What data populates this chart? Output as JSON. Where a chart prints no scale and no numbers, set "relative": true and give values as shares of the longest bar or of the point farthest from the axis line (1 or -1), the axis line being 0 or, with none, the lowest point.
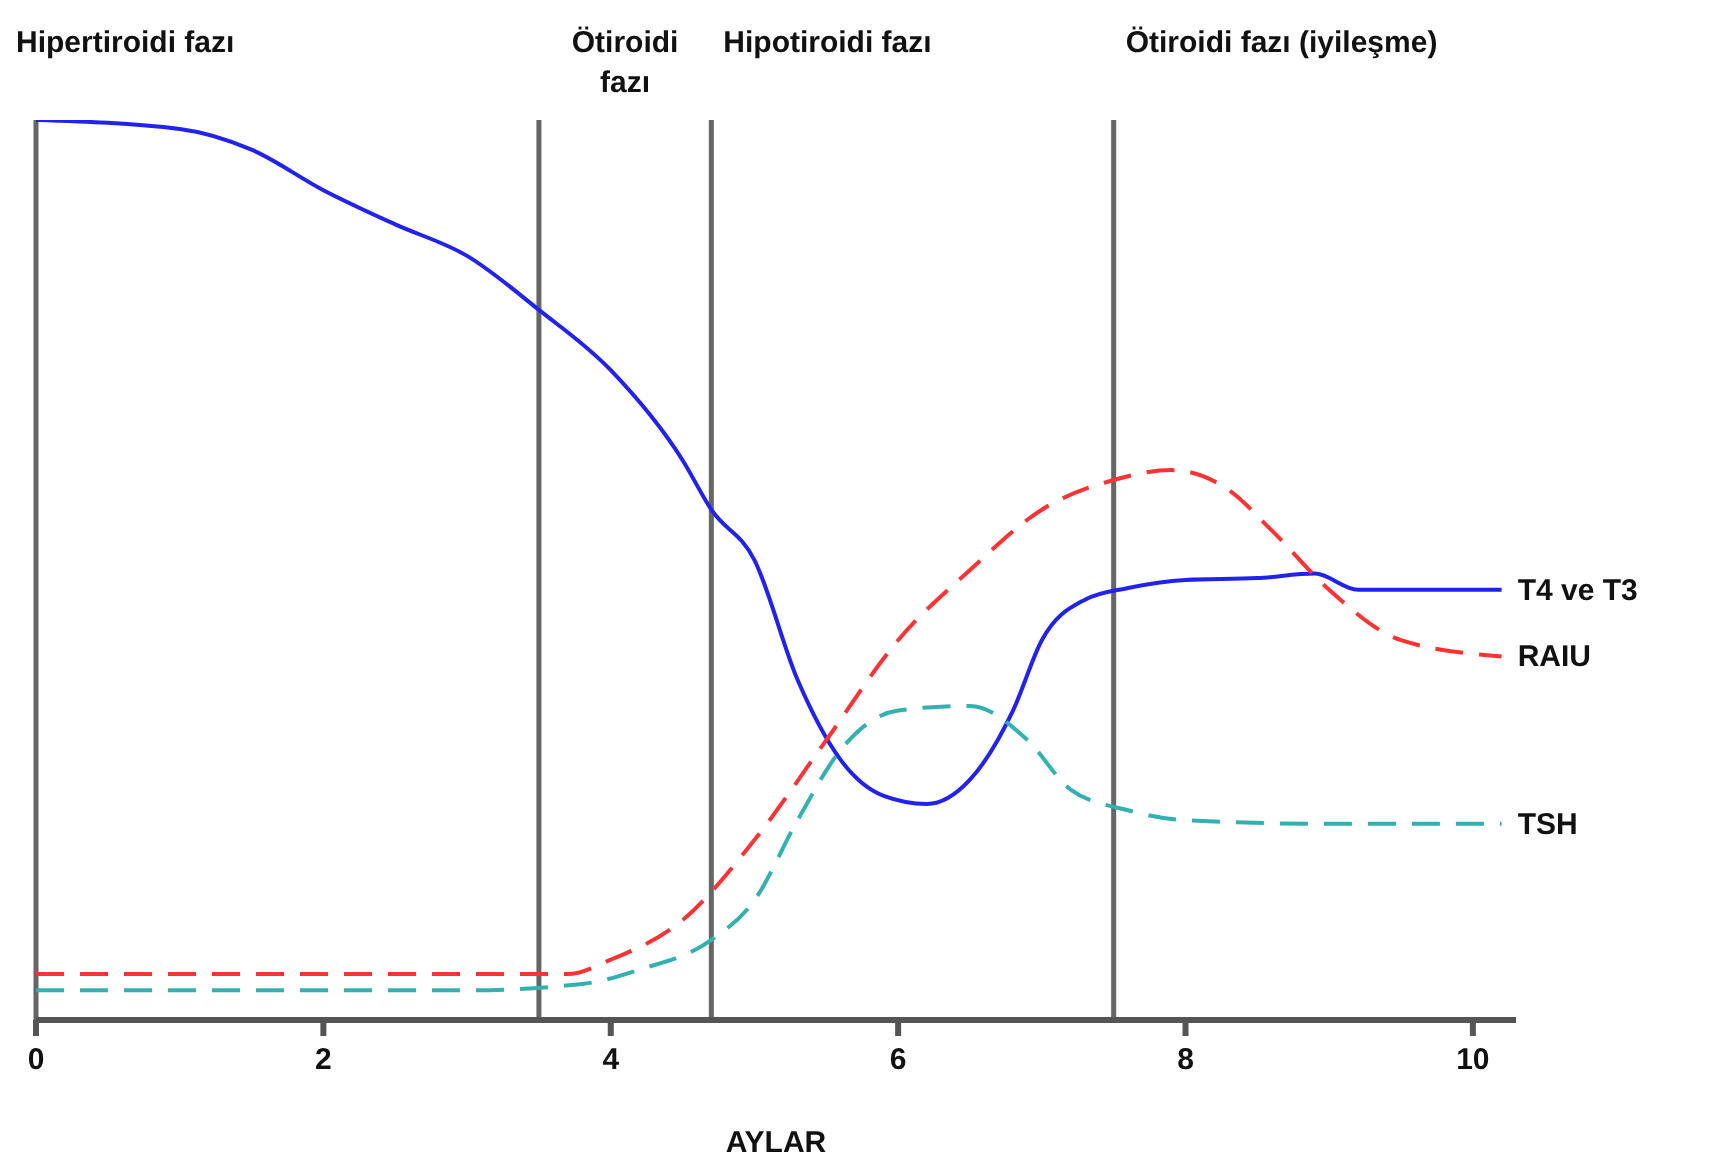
{
  "chart_data": {
    "type": "line",
    "relative": true,
    "xlabel": "AYLAR",
    "xlim": [
      0,
      10.3
    ],
    "xticks": [
      0,
      2,
      4,
      6,
      8,
      10
    ],
    "legend": false,
    "marker": "none",
    "annotations": [
      "Hipertiroidi fazı",
      "Ötiroidi fazı",
      "Hipotiroidi fazı",
      "Ötiroidi fazı (iyileşme)"
    ],
    "ref_lines": [
      {
        "axis": "x",
        "value": 0,
        "color": "#666666"
      },
      {
        "axis": "x",
        "value": 3.5,
        "color": "#666666"
      },
      {
        "axis": "x",
        "value": 4.7,
        "color": "#666666"
      },
      {
        "axis": "x",
        "value": 7.5,
        "color": "#666666"
      }
    ],
    "series": [
      {
        "name": "T4 ve T3",
        "color": "#2222ee",
        "line_style": "solid",
        "x": [
          0,
          1,
          1.5,
          2,
          2.5,
          3,
          3.5,
          4,
          4.5,
          4.7,
          5,
          5.3,
          5.6,
          5.9,
          6.2,
          6.5,
          6.8,
          7,
          7.3,
          7.6,
          8,
          8.5,
          8.9,
          9.2,
          9.6,
          10.2
        ],
        "values": [
          1,
          0.99,
          0.967,
          0.922,
          0.884,
          0.849,
          0.789,
          0.722,
          0.622,
          0.567,
          0.511,
          0.378,
          0.289,
          0.249,
          0.24,
          0.267,
          0.344,
          0.422,
          0.467,
          0.48,
          0.489,
          0.491,
          0.496,
          0.478,
          0.478,
          0.478
        ]
      },
      {
        "name": "RAIU",
        "color": "#ff3333",
        "line_style": "dashed",
        "x": [
          0,
          3.7,
          4,
          4.5,
          5,
          5.5,
          6,
          6.5,
          7,
          7.5,
          7.9,
          8.3,
          8.6,
          9,
          9.5,
          10.2
        ],
        "values": [
          0.051,
          0.051,
          0.067,
          0.111,
          0.2,
          0.311,
          0.422,
          0.5,
          0.567,
          0.6,
          0.611,
          0.589,
          0.544,
          0.478,
          0.422,
          0.404
        ]
      },
      {
        "name": "TSH",
        "color": "#33b0b0",
        "line_style": "dashed",
        "x": [
          0,
          3,
          3.8,
          4.2,
          4.7,
          5,
          5.3,
          5.6,
          6,
          6.5,
          6.9,
          7.2,
          7.6,
          8,
          9,
          10.2
        ],
        "values": [
          0.033,
          0.033,
          0.04,
          0.056,
          0.089,
          0.133,
          0.222,
          0.3,
          0.344,
          0.349,
          0.311,
          0.256,
          0.233,
          0.222,
          0.218,
          0.218
        ]
      }
    ]
  }
}
